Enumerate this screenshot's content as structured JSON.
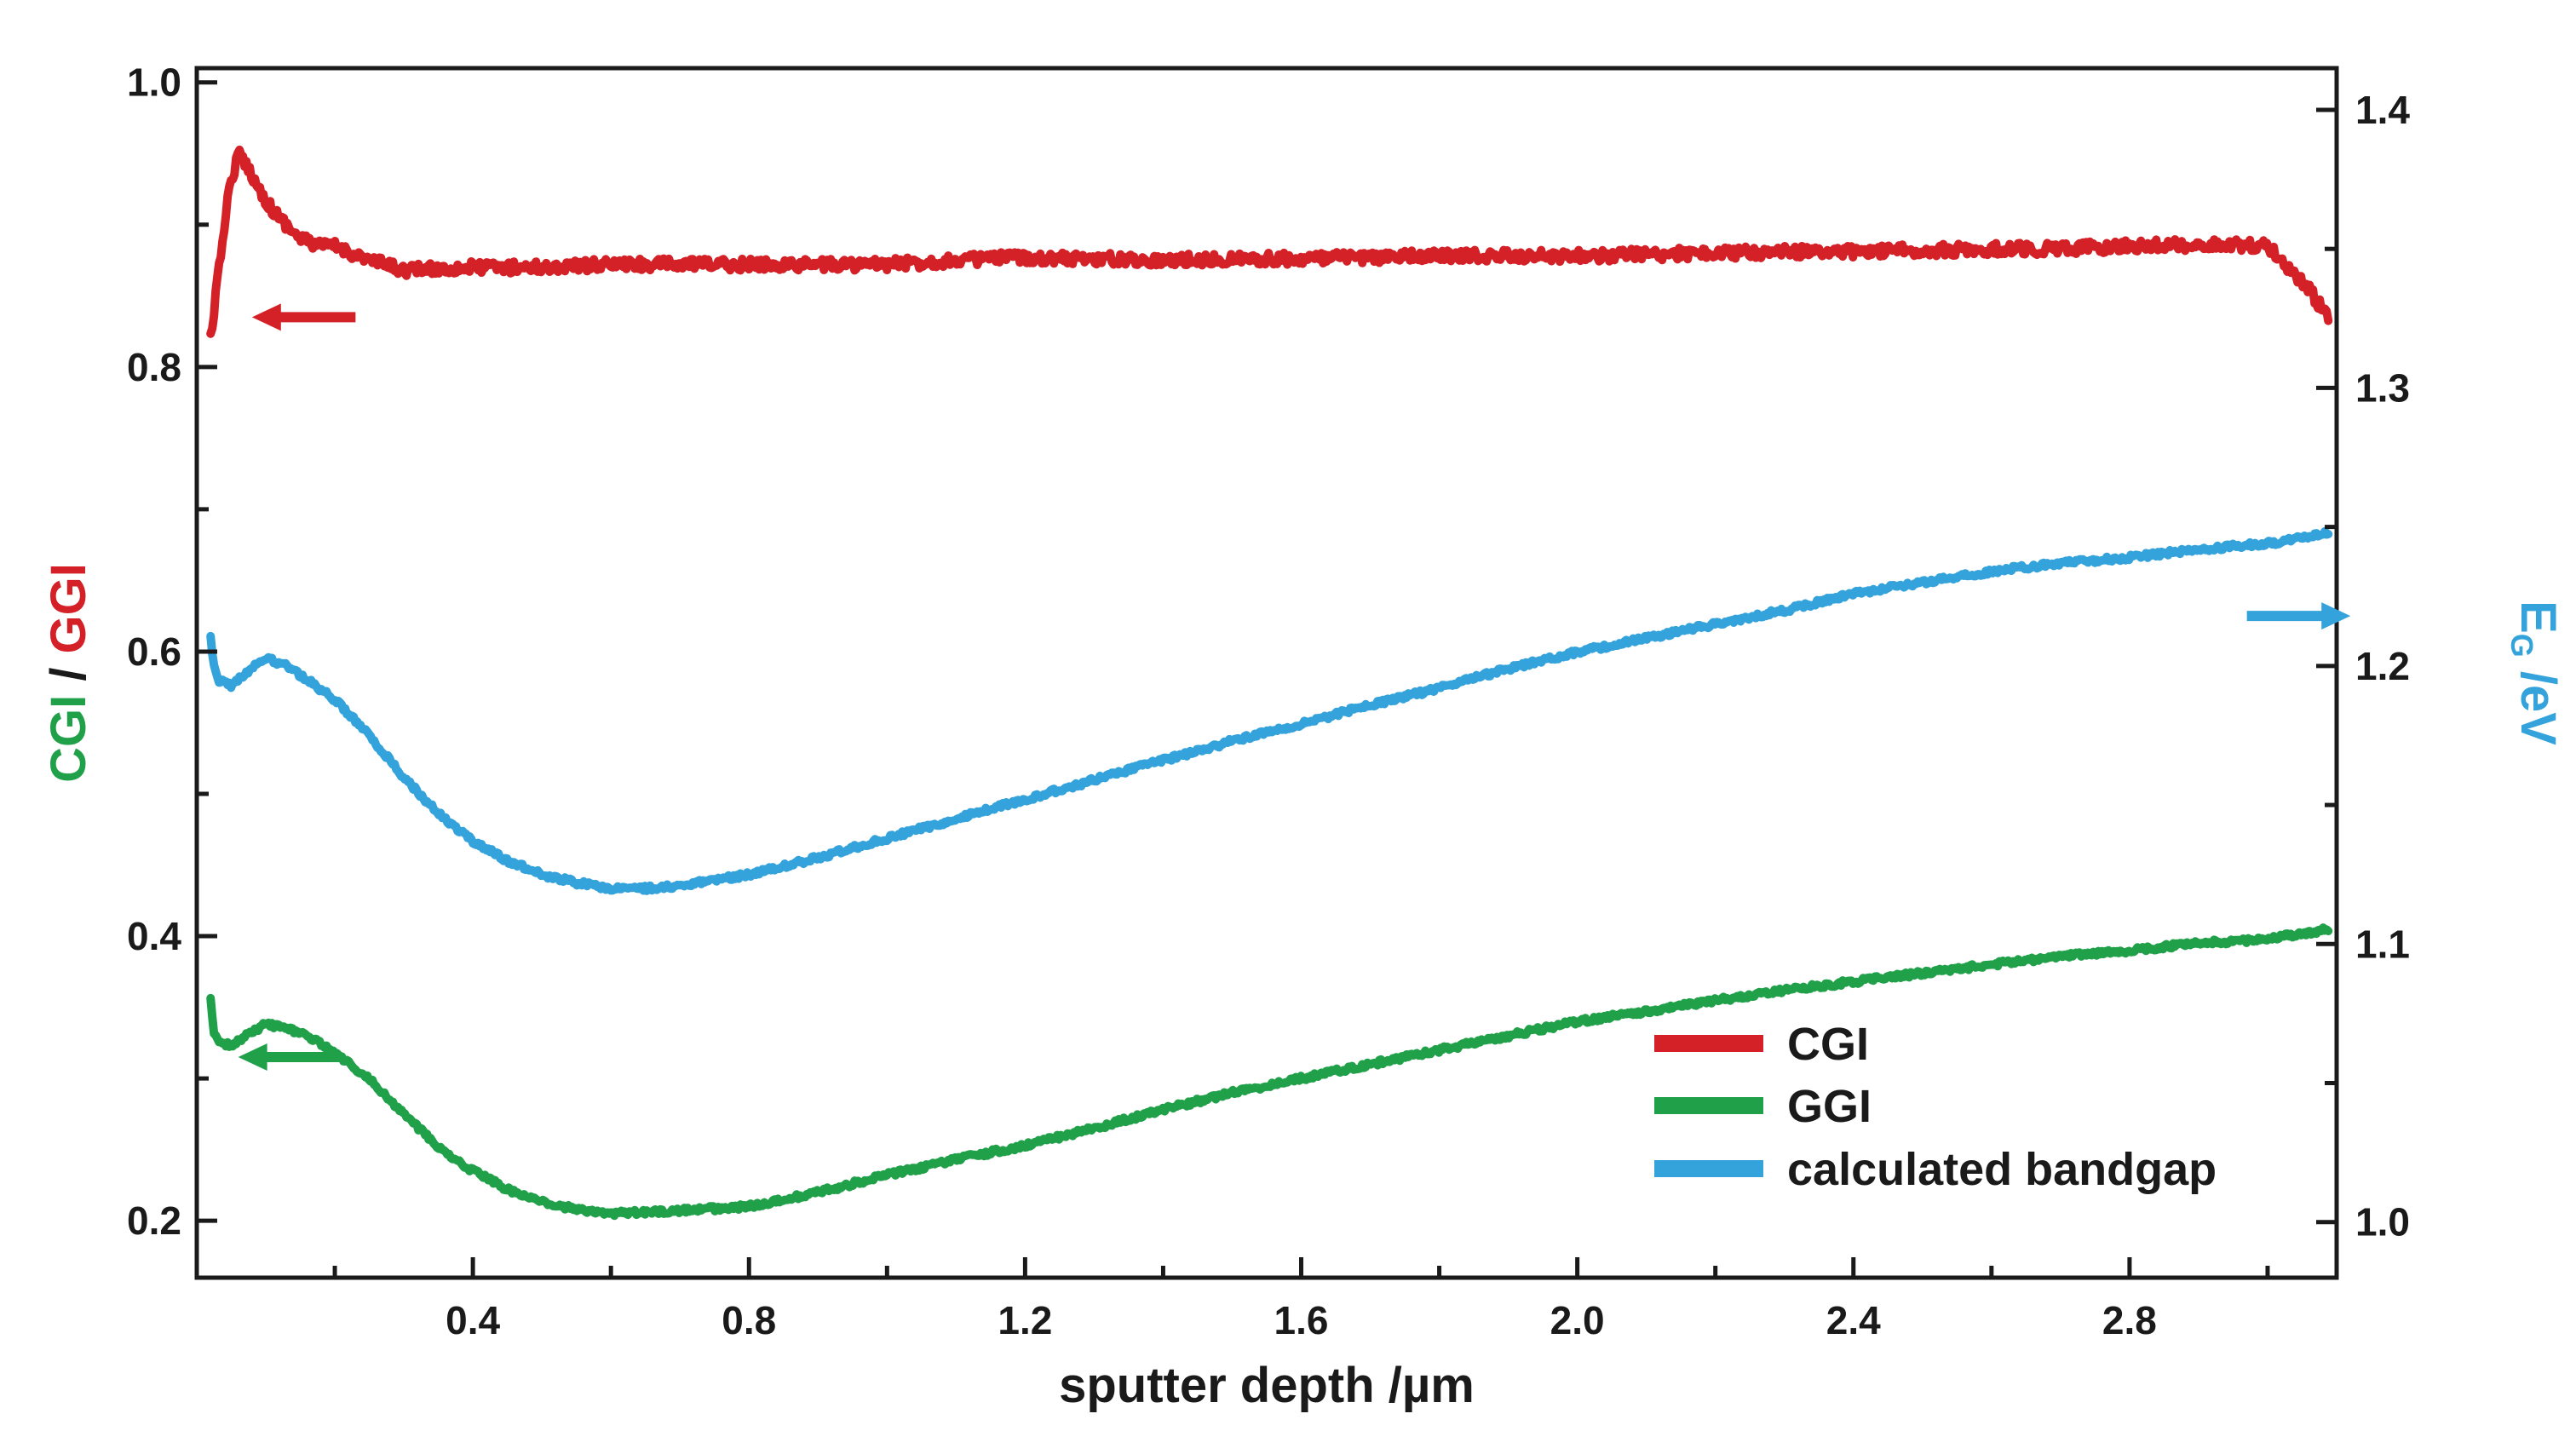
{
  "chart_data": {
    "type": "line",
    "xlabel": "sputter depth /µm",
    "ylabel_left": {
      "part1": "CGI",
      "sep": " / ",
      "part2": "GGI"
    },
    "ylabel_right": {
      "main": "E",
      "sub": "G",
      "rest": " /eV"
    },
    "xlim": [
      0.0,
      3.1
    ],
    "ylim_left": [
      0.16,
      1.01
    ],
    "ylim_right": [
      0.98,
      1.415
    ],
    "x_ticks": [
      "0.4",
      "0.8",
      "1.2",
      "1.6",
      "2.0",
      "2.4",
      "2.8"
    ],
    "left_ticks": [
      "0.2",
      "0.4",
      "0.6",
      "0.8",
      "1.0"
    ],
    "right_ticks": [
      "1.0",
      "1.1",
      "1.2",
      "1.3",
      "1.4"
    ],
    "grid": false,
    "legend_position": "bottom-right",
    "colors": {
      "CGI": "#d42027",
      "GGI": "#21a04a",
      "bandgap": "#34a2db",
      "axis": "#1a1a1a"
    },
    "series": [
      {
        "name": "CGI",
        "axis": "left",
        "x": [
          0.02,
          0.03,
          0.045,
          0.06,
          0.075,
          0.09,
          0.11,
          0.13,
          0.15,
          0.18,
          0.2,
          0.25,
          0.3,
          0.4,
          0.5,
          0.6,
          0.7,
          0.8,
          0.9,
          1.0,
          1.1,
          1.2,
          1.3,
          1.4,
          1.5,
          1.6,
          1.7,
          1.8,
          1.9,
          2.0,
          2.1,
          2.2,
          2.3,
          2.4,
          2.5,
          2.6,
          2.7,
          2.8,
          2.9,
          2.95,
          3.0,
          3.03,
          3.06,
          3.08,
          3.09
        ],
        "y": [
          0.82,
          0.86,
          0.92,
          0.95,
          0.94,
          0.925,
          0.91,
          0.9,
          0.89,
          0.885,
          0.885,
          0.875,
          0.868,
          0.87,
          0.87,
          0.872,
          0.872,
          0.872,
          0.872,
          0.872,
          0.875,
          0.877,
          0.876,
          0.875,
          0.876,
          0.876,
          0.877,
          0.878,
          0.878,
          0.878,
          0.879,
          0.88,
          0.881,
          0.881,
          0.882,
          0.883,
          0.883,
          0.885,
          0.886,
          0.886,
          0.885,
          0.87,
          0.855,
          0.84,
          0.835
        ]
      },
      {
        "name": "GGI",
        "axis": "left",
        "x": [
          0.02,
          0.025,
          0.03,
          0.05,
          0.07,
          0.1,
          0.13,
          0.16,
          0.2,
          0.25,
          0.3,
          0.35,
          0.4,
          0.45,
          0.5,
          0.55,
          0.6,
          0.65,
          0.7,
          0.8,
          0.9,
          1.0,
          1.1,
          1.2,
          1.3,
          1.4,
          1.5,
          1.6,
          1.7,
          1.8,
          1.9,
          2.0,
          2.1,
          2.2,
          2.3,
          2.4,
          2.5,
          2.6,
          2.7,
          2.8,
          2.9,
          3.0,
          3.05,
          3.09
        ],
        "y": [
          0.355,
          0.33,
          0.328,
          0.322,
          0.33,
          0.338,
          0.335,
          0.33,
          0.318,
          0.3,
          0.275,
          0.252,
          0.235,
          0.222,
          0.213,
          0.208,
          0.205,
          0.206,
          0.207,
          0.21,
          0.22,
          0.232,
          0.243,
          0.253,
          0.265,
          0.278,
          0.29,
          0.3,
          0.31,
          0.32,
          0.33,
          0.34,
          0.347,
          0.355,
          0.362,
          0.368,
          0.374,
          0.38,
          0.386,
          0.39,
          0.395,
          0.398,
          0.402,
          0.405
        ]
      },
      {
        "name": "calculated bandgap",
        "axis": "right",
        "x": [
          0.02,
          0.025,
          0.03,
          0.05,
          0.07,
          0.1,
          0.13,
          0.16,
          0.2,
          0.25,
          0.3,
          0.35,
          0.4,
          0.45,
          0.5,
          0.55,
          0.6,
          0.65,
          0.7,
          0.8,
          0.9,
          1.0,
          1.1,
          1.2,
          1.3,
          1.4,
          1.5,
          1.6,
          1.7,
          1.8,
          1.9,
          2.0,
          2.1,
          2.2,
          2.3,
          2.4,
          2.5,
          2.6,
          2.7,
          2.8,
          2.9,
          3.0,
          3.05,
          3.09
        ],
        "y": [
          1.21,
          1.2,
          1.195,
          1.193,
          1.197,
          1.203,
          1.2,
          1.195,
          1.188,
          1.175,
          1.16,
          1.147,
          1.137,
          1.13,
          1.125,
          1.122,
          1.12,
          1.12,
          1.121,
          1.125,
          1.131,
          1.138,
          1.145,
          1.152,
          1.159,
          1.166,
          1.173,
          1.179,
          1.186,
          1.192,
          1.199,
          1.205,
          1.21,
          1.215,
          1.22,
          1.226,
          1.23,
          1.234,
          1.237,
          1.239,
          1.242,
          1.244,
          1.246,
          1.248
        ]
      }
    ]
  }
}
